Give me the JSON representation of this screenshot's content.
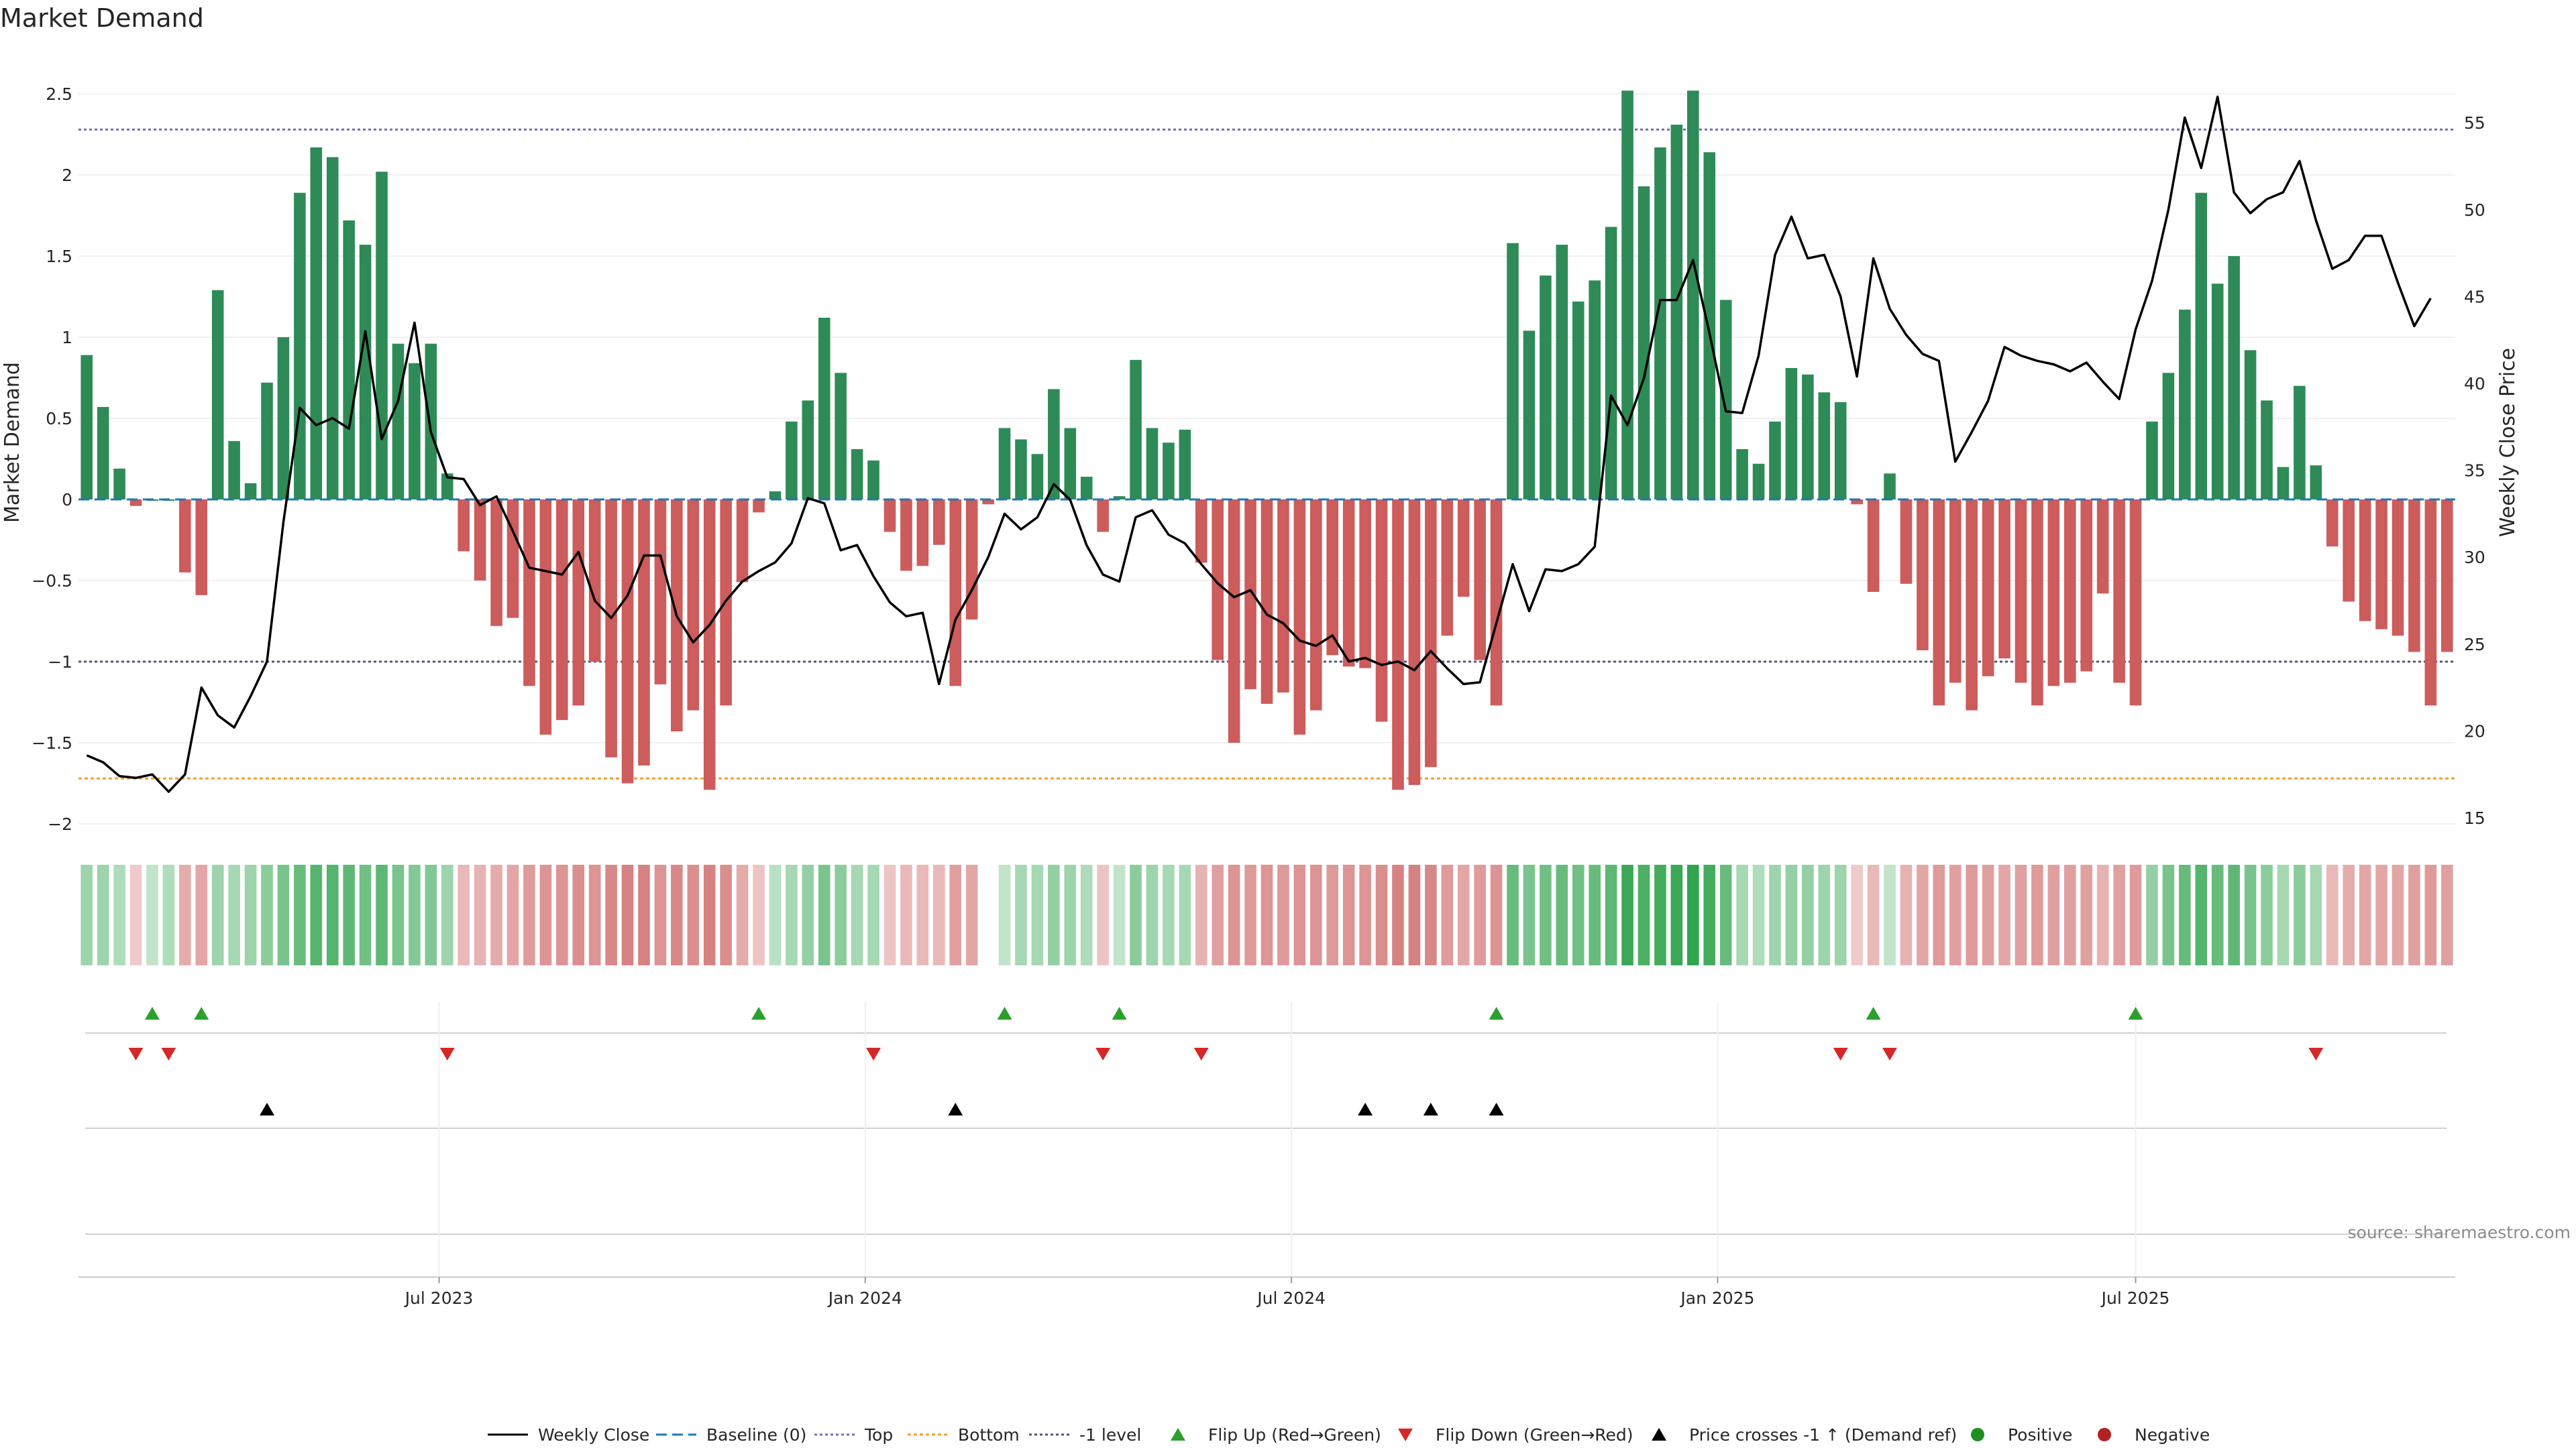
{
  "chart_data": {
    "type": "bar",
    "title": "Market Demand",
    "ylabel": "Market Demand",
    "y2label": "Weekly Close Price",
    "ylim": [
      -2.1,
      2.5
    ],
    "y2lim": [
      14,
      57.2
    ],
    "yticks": [
      "2.5",
      "2",
      "1.5",
      "1",
      "0.5",
      "0",
      "−0.5",
      "−1",
      "−1.5",
      "−2"
    ],
    "y2ticks": [
      "55",
      "50",
      "45",
      "40",
      "35",
      "30",
      "25",
      "20",
      "15"
    ],
    "x_dates": [
      "Jul 2023",
      "Jan 2024",
      "Jul 2024",
      "Jan 2025",
      "Jul 2025"
    ],
    "week_start_index": 0,
    "levels": {
      "top": 2.28,
      "bottom": -1.72,
      "minus_one": -1.0,
      "baseline": 0
    },
    "demand": [
      0.89,
      0.57,
      0.19,
      -0.04,
      0,
      0,
      -0.45,
      -0.59,
      1.29,
      0.36,
      0.1,
      0.72,
      1.0,
      1.89,
      2.17,
      2.11,
      1.72,
      1.57,
      2.02,
      0.96,
      0.84,
      0.96,
      0.16,
      -0.32,
      -0.5,
      -0.78,
      -0.73,
      -1.15,
      -1.45,
      -1.36,
      -1.27,
      -1.0,
      -1.59,
      -1.75,
      -1.64,
      -1.14,
      -1.43,
      -1.3,
      -1.79,
      -1.27,
      -0.51,
      -0.08,
      0.05,
      0.48,
      0.61,
      1.12,
      0.78,
      0.31,
      0.24,
      -0.2,
      -0.44,
      -0.41,
      -0.28,
      -1.15,
      -0.74,
      -0.03,
      0.44,
      0.37,
      0.28,
      0.68,
      0.44,
      0.14,
      -0.2,
      0.02,
      0.86,
      0.44,
      0.35,
      0.43,
      -0.39,
      -0.99,
      -1.5,
      -1.17,
      -1.26,
      -1.19,
      -1.45,
      -1.3,
      -0.96,
      -1.03,
      -1.04,
      -1.37,
      -1.79,
      -1.76,
      -1.65,
      -0.84,
      -0.6,
      -0.99,
      -1.27,
      1.58,
      1.04,
      1.38,
      1.57,
      1.22,
      1.35,
      1.68,
      2.52,
      1.93,
      2.17,
      2.31,
      2.52,
      2.14,
      1.23,
      0.31,
      0.22,
      0.48,
      0.81,
      0.77,
      0.66,
      0.6,
      -0.03,
      -0.57,
      0.16,
      -0.52,
      -0.93,
      -1.27,
      -1.13,
      -1.3,
      -1.09,
      -0.98,
      -1.13,
      -1.27,
      -1.15,
      -1.13,
      -1.06,
      -0.58,
      -1.13,
      -1.27,
      0.48,
      0.78,
      1.17,
      1.89,
      1.33,
      1.5,
      0.92,
      0.61,
      0.2,
      0.7,
      0.21,
      -0.29,
      -0.63,
      -0.75,
      -0.8,
      -0.84,
      -0.94,
      -1.27,
      -0.94
    ],
    "weekly_close": [
      18.6,
      18.2,
      17.4,
      17.3,
      17.5,
      16.5,
      17.5,
      22.5,
      20.9,
      20.2,
      22.0,
      24.0,
      32.0,
      38.6,
      37.6,
      38.0,
      37.4,
      43.0,
      36.8,
      39.0,
      43.5,
      37.2,
      34.6,
      34.5,
      33.0,
      33.5,
      31.5,
      29.4,
      29.2,
      29.0,
      30.3,
      27.5,
      26.5,
      27.8,
      30.1,
      30.1,
      26.6,
      25.1,
      26.1,
      27.5,
      28.6,
      29.2,
      29.7,
      30.8,
      33.4,
      33.1,
      30.4,
      30.7,
      28.9,
      27.4,
      26.6,
      26.8,
      22.7,
      26.4,
      28.1,
      30.0,
      32.5,
      31.6,
      32.3,
      34.2,
      33.3,
      30.7,
      29.0,
      28.6,
      32.3,
      32.7,
      31.3,
      30.8,
      29.6,
      28.5,
      27.7,
      28.1,
      26.7,
      26.2,
      25.2,
      24.9,
      25.5,
      24.0,
      24.2,
      23.8,
      24.0,
      23.5,
      24.6,
      23.6,
      22.7,
      22.8,
      26.2,
      29.6,
      26.9,
      29.3,
      29.2,
      29.6,
      30.6,
      39.3,
      37.6,
      40.3,
      44.8,
      44.8,
      47.1,
      42.9,
      38.4,
      38.3,
      41.6,
      47.4,
      49.6,
      47.2,
      47.4,
      45.0,
      40.4,
      47.2,
      44.3,
      42.8,
      41.7,
      41.3,
      35.5,
      37.2,
      39.0,
      42.1,
      41.6,
      41.3,
      41.1,
      40.7,
      41.2,
      40.1,
      39.1,
      43.1,
      45.9,
      50.0,
      55.3,
      52.4,
      56.5,
      51.0,
      49.8,
      50.6,
      51.0,
      52.8,
      49.4,
      46.6,
      47.1,
      48.5,
      48.5,
      45.8,
      43.3,
      44.9
    ],
    "strip_shade": [
      0.35,
      0.35,
      0.25,
      0.15,
      0.15,
      0.25,
      0.4,
      0.45,
      0.35,
      0.3,
      0.35,
      0.45,
      0.55,
      0.65,
      0.75,
      0.75,
      0.7,
      0.6,
      0.7,
      0.55,
      0.5,
      0.5,
      0.35,
      0.3,
      0.35,
      0.4,
      0.45,
      0.55,
      0.6,
      0.6,
      0.65,
      0.6,
      0.7,
      0.75,
      0.75,
      0.6,
      0.7,
      0.65,
      0.75,
      0.65,
      0.4,
      0.2,
      0.2,
      0.3,
      0.4,
      0.55,
      0.45,
      0.3,
      0.3,
      0.2,
      0.3,
      0.3,
      0.3,
      0.5,
      0.45,
      null,
      0.15,
      0.3,
      0.3,
      0.4,
      0.35,
      0.25,
      0.2,
      0.15,
      0.45,
      0.35,
      0.3,
      0.3,
      0.35,
      0.5,
      0.6,
      0.55,
      0.6,
      0.55,
      0.6,
      0.6,
      0.55,
      0.6,
      0.6,
      0.65,
      0.75,
      0.75,
      0.7,
      0.55,
      0.45,
      0.55,
      0.6,
      0.65,
      0.55,
      0.6,
      0.65,
      0.6,
      0.65,
      0.7,
      0.9,
      0.8,
      0.85,
      0.9,
      0.95,
      0.85,
      0.65,
      0.3,
      0.25,
      0.35,
      0.4,
      0.4,
      0.35,
      0.35,
      0.15,
      0.3,
      0.15,
      0.35,
      0.45,
      0.55,
      0.5,
      0.55,
      0.5,
      0.45,
      0.5,
      0.55,
      0.5,
      0.5,
      0.5,
      0.35,
      0.5,
      0.55,
      0.4,
      0.55,
      0.65,
      0.75,
      0.65,
      0.7,
      0.55,
      0.45,
      0.3,
      0.45,
      0.3,
      0.3,
      0.4,
      0.45,
      0.45,
      0.45,
      0.5,
      0.55,
      0.5
    ],
    "flip_up_index": [
      4,
      7,
      41,
      56,
      63,
      86,
      109,
      125
    ],
    "flip_down_index": [
      3,
      5,
      22,
      48,
      62,
      68,
      107,
      110,
      136
    ],
    "price_cross_index": [
      11,
      53,
      78,
      82,
      86
    ],
    "legend": [
      "Weekly Close",
      "Baseline (0)",
      "Top",
      "Bottom",
      "-1 level",
      "Flip Up (Red→Green)",
      "Flip Down (Green→Red)",
      "Price crosses -1 ↑ (Demand ref)",
      "Positive",
      "Negative"
    ],
    "source": "source: sharemaestro.com",
    "colors": {
      "positive_bar": "#2e8b57",
      "negative_bar": "#cd5c5c",
      "close_line": "#000000",
      "baseline": "#1f77b4",
      "top": "#7b68b5",
      "bottom": "#f0a030",
      "minus_one": "#555577",
      "flip_up": "#2ca02c",
      "flip_down": "#d62728",
      "cross": "#000000",
      "positive_dot": "#1f8f1f",
      "negative_dot": "#b22222"
    }
  }
}
